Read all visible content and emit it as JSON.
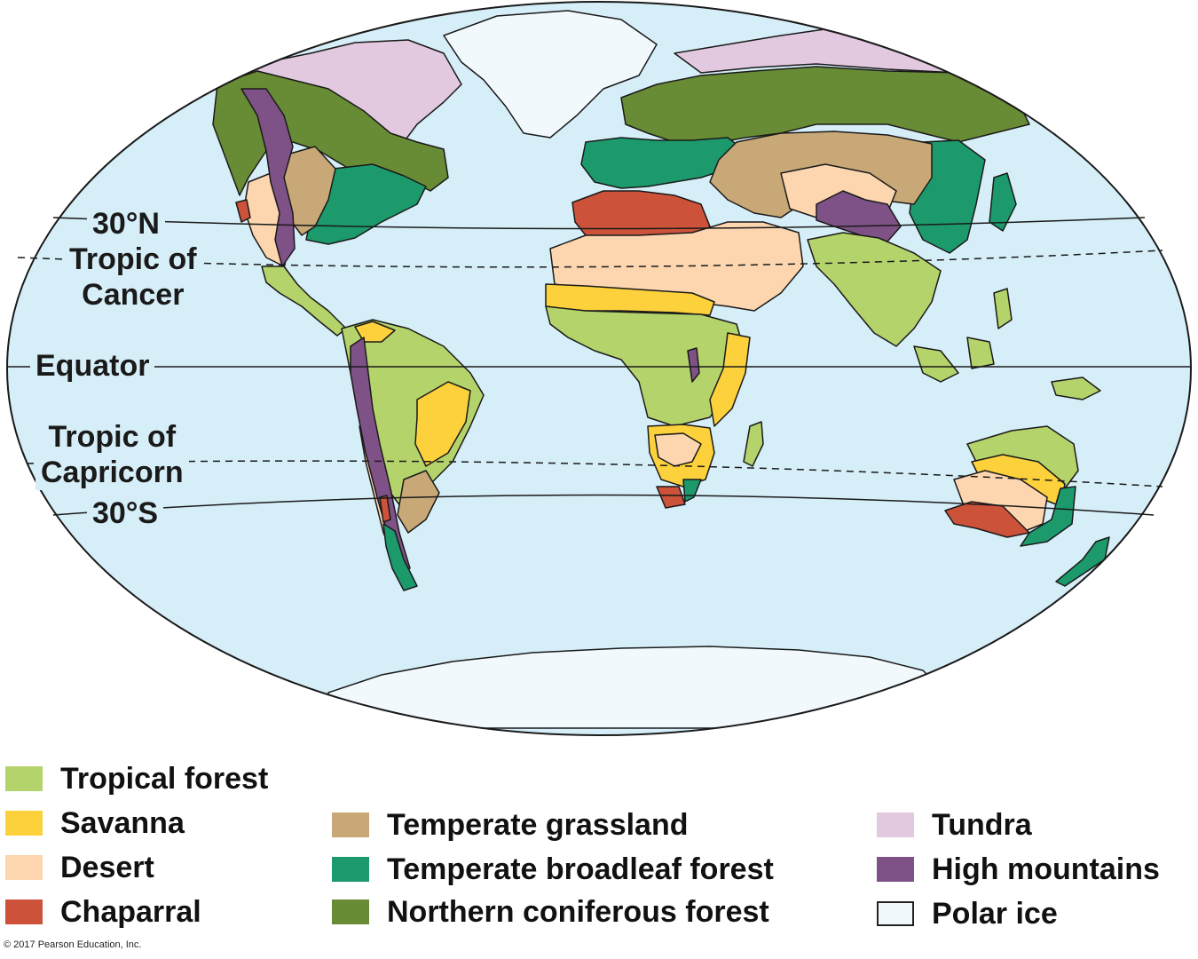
{
  "map": {
    "labels": {
      "n30": "30°N",
      "cancer_line1": "Tropic of",
      "cancer_line2": "Cancer",
      "equator": "Equator",
      "capricorn_line1": "Tropic of",
      "capricorn_line2": "Capricorn",
      "s30": "30°S"
    },
    "colors": {
      "ocean": "#d6eef8",
      "outline": "#1a1a1a",
      "tropical_forest": "#b5d36b",
      "savanna": "#fcd13b",
      "desert": "#fdd6b0",
      "chaparral": "#cc523a",
      "temperate_grassland": "#c9a878",
      "temperate_broadleaf_forest": "#1c9a6c",
      "northern_coniferous_forest": "#688b35",
      "tundra": "#e2c9df",
      "high_mountains": "#7e5286",
      "polar_ice": "#f2f9fd"
    }
  },
  "legend": [
    {
      "label": "Tropical forest",
      "color": "#b5d36b"
    },
    {
      "label": "Savanna",
      "color": "#fcd13b"
    },
    {
      "label": "Desert",
      "color": "#fdd6b0"
    },
    {
      "label": "Chaparral",
      "color": "#cc523a"
    },
    {
      "label": "Temperate grassland",
      "color": "#c9a878"
    },
    {
      "label": "Temperate broadleaf forest",
      "color": "#1c9a6c"
    },
    {
      "label": "Northern coniferous forest",
      "color": "#688b35"
    },
    {
      "label": "Tundra",
      "color": "#e2c9df"
    },
    {
      "label": "High mountains",
      "color": "#7e5286"
    },
    {
      "label": "Polar ice",
      "color": "#f2f9fd"
    }
  ],
  "copyright": "© 2017 Pearson Education, Inc."
}
